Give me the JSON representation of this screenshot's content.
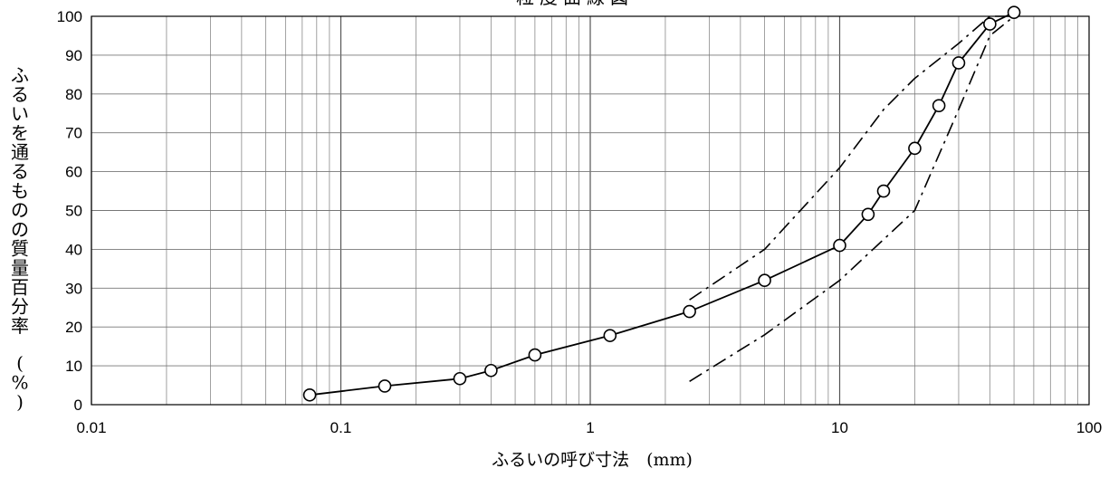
{
  "chart_data": {
    "type": "line",
    "title": "粒度曲線図",
    "xlabel": "ふるいの呼び寸法　(mm)",
    "ylabel": "ふるいを通るものの質量百分率　(%)",
    "x_scale": "log",
    "xlim": [
      0.01,
      100
    ],
    "ylim": [
      0,
      100
    ],
    "grid": true,
    "x_ticks": [
      "0.01",
      "0.1",
      "1",
      "10",
      "100"
    ],
    "y_ticks": [
      "0",
      "10",
      "20",
      "30",
      "40",
      "50",
      "60",
      "70",
      "80",
      "90",
      "100"
    ],
    "series": [
      {
        "style": "solid-with-circle-markers",
        "color": "#000000",
        "x": [
          0.075,
          0.15,
          0.3,
          0.4,
          0.6,
          1.2,
          2.5,
          5,
          10,
          13,
          15,
          20,
          25,
          30,
          40,
          50
        ],
        "y": [
          2.5,
          4.8,
          6.7,
          8.8,
          12.8,
          17.8,
          24,
          32,
          41,
          49,
          55,
          66,
          77,
          88,
          98,
          101
        ]
      },
      {
        "style": "dash-dot-upper-limit",
        "color": "#000000",
        "x": [
          2.5,
          5,
          10,
          15,
          20,
          30,
          40,
          50
        ],
        "y": [
          27,
          40,
          61,
          76,
          84,
          93,
          100,
          100
        ]
      },
      {
        "style": "dash-dot-lower-limit",
        "color": "#000000",
        "x": [
          2.5,
          5,
          10,
          20,
          30,
          40,
          50
        ],
        "y": [
          6,
          18,
          32,
          50,
          76,
          95,
          100
        ]
      }
    ]
  }
}
